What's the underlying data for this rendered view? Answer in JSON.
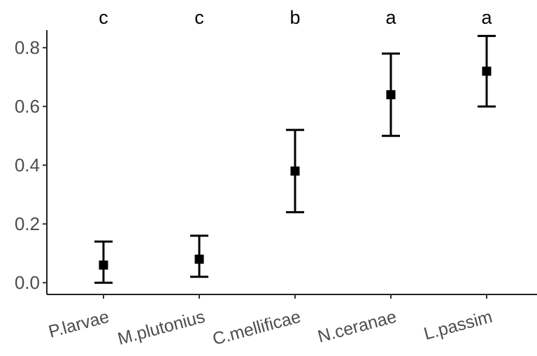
{
  "chart_data": {
    "type": "scatter",
    "title": "",
    "xlabel": "",
    "ylabel": "",
    "categories": [
      "P.larvae",
      "M.plutonius",
      "C.mellificae",
      "N.ceranae",
      "L.passim"
    ],
    "series": [
      {
        "values": [
          0.06,
          0.08,
          0.38,
          0.64,
          0.72
        ],
        "lower": [
          0.0,
          0.02,
          0.24,
          0.5,
          0.6
        ],
        "upper": [
          0.14,
          0.16,
          0.52,
          0.78,
          0.84
        ]
      }
    ],
    "significance_letters": [
      "c",
      "c",
      "b",
      "a",
      "a"
    ],
    "ylim": [
      -0.04,
      0.86
    ],
    "yticks": [
      0.0,
      0.2,
      0.4,
      0.6,
      0.8
    ],
    "ytick_labels": [
      "0.0",
      "0.2",
      "0.4",
      "0.6",
      "0.8"
    ],
    "grid": false,
    "legend": "none",
    "colors": {
      "points": "#000000",
      "tick_labels": "#4d4d4d"
    }
  }
}
